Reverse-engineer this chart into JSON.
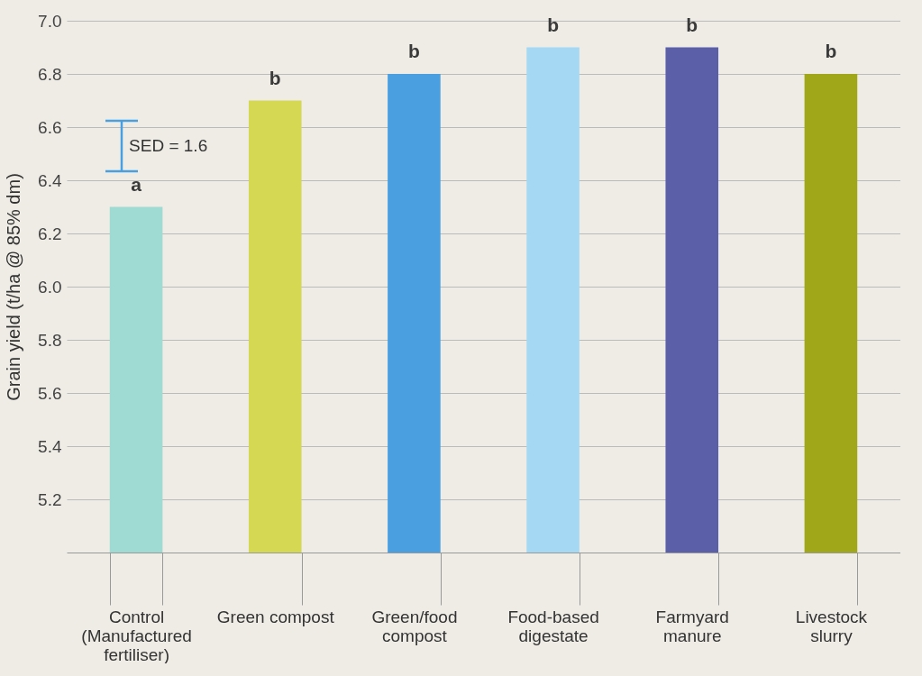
{
  "chart_data": {
    "type": "bar",
    "categories": [
      "Control (Manufactured fertiliser)",
      "Green compost",
      "Green/food compost",
      "Food-based digestate",
      "Farmyard manure",
      "Livestock slurry"
    ],
    "values": [
      6.3,
      6.7,
      6.8,
      6.9,
      6.9,
      6.8
    ],
    "colors": [
      "#9fdad3",
      "#d5d852",
      "#4a9fe0",
      "#a5d8f3",
      "#5a5fa8",
      "#a0a81a"
    ],
    "ylabel": "Grain yield (t/ha @ 85% dm)",
    "ylim": [
      5.0,
      7.0
    ],
    "yticks": [
      5.2,
      5.4,
      5.6,
      5.8,
      {
        "value": 6,
        "label": "6.0"
      },
      6.2,
      6.4,
      6.6,
      6.8,
      {
        "value": 7,
        "label": "7.0"
      }
    ],
    "grid": "y",
    "annotations": [
      {
        "text": "a",
        "x": "Control (Manufactured fertiliser)",
        "y": 6.3
      },
      {
        "text": "b",
        "x": "Green compost",
        "y": 6.7
      },
      {
        "text": "b",
        "x": "Green/food compost",
        "y": 6.8
      },
      {
        "text": "b",
        "x": "Food-based digestate",
        "y": 6.9
      },
      {
        "text": "b",
        "x": "Farmyard manure",
        "y": 6.9
      },
      {
        "text": "b",
        "x": "Livestock slurry",
        "y": 6.8
      },
      "SED = 1.6"
    ]
  }
}
